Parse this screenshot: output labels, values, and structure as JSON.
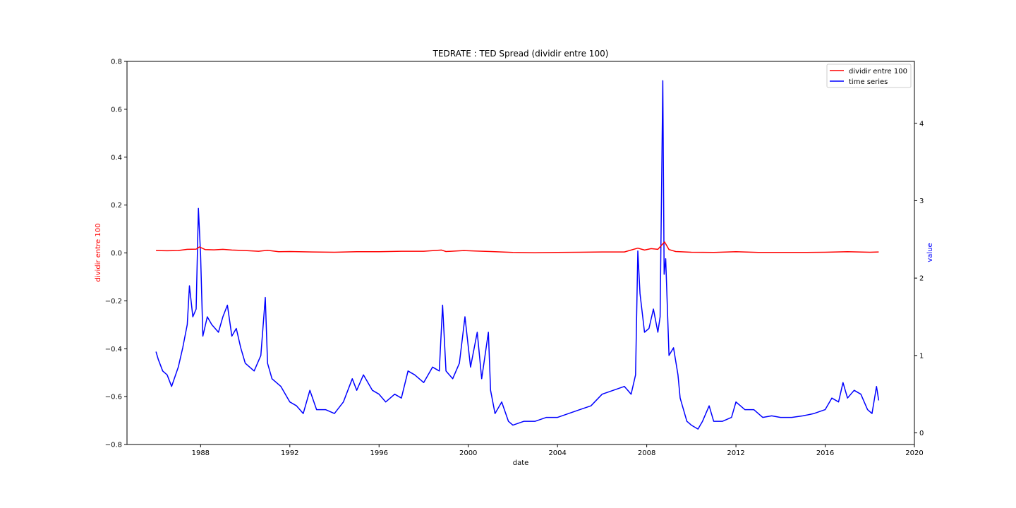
{
  "chart_data": {
    "type": "line",
    "title": "TEDRATE :  TED Spread (dividir entre 100)",
    "xlabel": "date",
    "ylabel_left": "dividir entre 100",
    "ylabel_right": "value",
    "xlim": [
      1984.7,
      2020
    ],
    "ylim_left": [
      -0.8,
      0.8
    ],
    "ylim_right": [
      -0.15,
      4.8
    ],
    "x_ticks": [
      "1988",
      "1992",
      "1996",
      "2000",
      "2004",
      "2008",
      "2012",
      "2016",
      "2020"
    ],
    "y_left_ticks": [
      "0.8",
      "0.6",
      "0.4",
      "0.2",
      "0.0",
      "−0.2",
      "−0.4",
      "−0.6",
      "−0.8"
    ],
    "y_right_ticks": [
      "0",
      "1",
      "2",
      "3",
      "4"
    ],
    "legend_position": "top-right",
    "grid": false,
    "colors": {
      "left_series": "#ff0000",
      "right_series": "#0000ff"
    },
    "series": [
      {
        "name": "dividir entre 100",
        "axis": "left",
        "color": "#ff0000",
        "x": [
          1986.0,
          1986.5,
          1987.0,
          1987.4,
          1987.8,
          1987.95,
          1988.2,
          1988.6,
          1989.0,
          1989.4,
          1990.0,
          1990.6,
          1991.0,
          1991.5,
          1992.0,
          1993.0,
          1994.0,
          1995.0,
          1996.0,
          1997.0,
          1998.0,
          1998.8,
          1999.0,
          1999.8,
          2000.3,
          2001.0,
          2002.0,
          2003.0,
          2004.0,
          2005.0,
          2006.0,
          2007.0,
          2007.6,
          2007.9,
          2008.2,
          2008.5,
          2008.8,
          2009.0,
          2009.3,
          2010.0,
          2011.0,
          2012.0,
          2013.0,
          2014.0,
          2015.0,
          2016.0,
          2017.0,
          2018.0,
          2018.4
        ],
        "values": [
          0.01,
          0.009,
          0.01,
          0.015,
          0.016,
          0.025,
          0.014,
          0.013,
          0.015,
          0.012,
          0.01,
          0.007,
          0.011,
          0.005,
          0.006,
          0.004,
          0.003,
          0.005,
          0.005,
          0.007,
          0.007,
          0.012,
          0.006,
          0.01,
          0.008,
          0.006,
          0.002,
          0.001,
          0.002,
          0.003,
          0.004,
          0.004,
          0.02,
          0.012,
          0.018,
          0.015,
          0.046,
          0.014,
          0.006,
          0.003,
          0.002,
          0.005,
          0.002,
          0.002,
          0.002,
          0.003,
          0.005,
          0.003,
          0.004
        ]
      },
      {
        "name": "time series",
        "axis": "right",
        "color": "#0000ff",
        "x": [
          1986.0,
          1986.1,
          1986.3,
          1986.5,
          1986.7,
          1987.0,
          1987.2,
          1987.4,
          1987.5,
          1987.65,
          1987.8,
          1987.9,
          1988.0,
          1988.1,
          1988.3,
          1988.5,
          1988.8,
          1989.0,
          1989.2,
          1989.4,
          1989.6,
          1989.8,
          1990.0,
          1990.4,
          1990.7,
          1990.9,
          1991.0,
          1991.2,
          1991.6,
          1992.0,
          1992.3,
          1992.6,
          1992.9,
          1993.2,
          1993.6,
          1994.0,
          1994.4,
          1994.8,
          1995.0,
          1995.3,
          1995.7,
          1996.0,
          1996.3,
          1996.7,
          1997.0,
          1997.3,
          1997.6,
          1998.0,
          1998.4,
          1998.7,
          1998.85,
          1999.0,
          1999.3,
          1999.6,
          1999.85,
          2000.1,
          2000.4,
          2000.6,
          2000.9,
          2001.0,
          2001.2,
          2001.5,
          2001.8,
          2002.0,
          2002.5,
          2003.0,
          2003.5,
          2004.0,
          2004.5,
          2005.0,
          2005.5,
          2006.0,
          2006.5,
          2007.0,
          2007.3,
          2007.5,
          2007.6,
          2007.7,
          2007.9,
          2008.1,
          2008.3,
          2008.5,
          2008.6,
          2008.72,
          2008.78,
          2008.85,
          2009.0,
          2009.2,
          2009.4,
          2009.5,
          2009.8,
          2010.0,
          2010.3,
          2010.5,
          2010.8,
          2011.0,
          2011.4,
          2011.8,
          2012.0,
          2012.4,
          2012.8,
          2013.2,
          2013.6,
          2014.0,
          2014.5,
          2015.0,
          2015.5,
          2016.0,
          2016.3,
          2016.6,
          2016.8,
          2017.0,
          2017.3,
          2017.6,
          2017.9,
          2018.1,
          2018.3,
          2018.4
        ],
        "values": [
          1.05,
          0.95,
          0.8,
          0.75,
          0.6,
          0.85,
          1.1,
          1.4,
          1.9,
          1.5,
          1.6,
          2.9,
          2.3,
          1.25,
          1.5,
          1.4,
          1.3,
          1.5,
          1.65,
          1.25,
          1.35,
          1.1,
          0.9,
          0.8,
          1.0,
          1.75,
          0.9,
          0.7,
          0.6,
          0.4,
          0.35,
          0.25,
          0.55,
          0.3,
          0.3,
          0.25,
          0.4,
          0.7,
          0.55,
          0.75,
          0.55,
          0.5,
          0.4,
          0.5,
          0.45,
          0.8,
          0.75,
          0.65,
          0.85,
          0.8,
          1.65,
          0.8,
          0.7,
          0.9,
          1.5,
          0.85,
          1.3,
          0.7,
          1.3,
          0.55,
          0.25,
          0.4,
          0.15,
          0.1,
          0.15,
          0.15,
          0.2,
          0.2,
          0.25,
          0.3,
          0.35,
          0.5,
          0.55,
          0.6,
          0.5,
          0.75,
          2.35,
          1.8,
          1.3,
          1.35,
          1.6,
          1.3,
          1.5,
          4.55,
          2.05,
          2.25,
          1.0,
          1.1,
          0.75,
          0.45,
          0.15,
          0.1,
          0.05,
          0.15,
          0.35,
          0.15,
          0.15,
          0.2,
          0.4,
          0.3,
          0.3,
          0.2,
          0.22,
          0.2,
          0.2,
          0.22,
          0.25,
          0.3,
          0.45,
          0.4,
          0.65,
          0.45,
          0.55,
          0.5,
          0.3,
          0.25,
          0.6,
          0.42
        ]
      }
    ]
  }
}
